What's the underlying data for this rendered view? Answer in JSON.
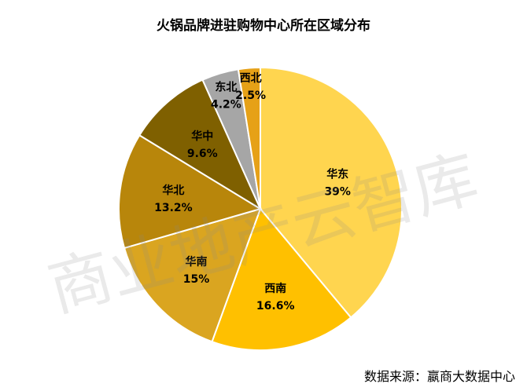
{
  "chart_data": {
    "type": "pie",
    "title": "火锅品牌进驻购物中心所在区域分布",
    "slices": [
      {
        "name": "华东",
        "value": 39,
        "label": "39%",
        "color": "#FFD54F"
      },
      {
        "name": "西南",
        "value": 16.6,
        "label": "16.6%",
        "color": "#FFC000"
      },
      {
        "name": "华南",
        "value": 15,
        "label": "15%",
        "color": "#DAA520"
      },
      {
        "name": "华北",
        "value": 13.2,
        "label": "13.2%",
        "color": "#B8860B"
      },
      {
        "name": "华中",
        "value": 9.6,
        "label": "9.6%",
        "color": "#7F6000"
      },
      {
        "name": "东北",
        "value": 4.2,
        "label": "4.2%",
        "color": "#A6A6A6"
      },
      {
        "name": "西北",
        "value": 2.5,
        "label": "2.5%",
        "color": "#E6A117"
      }
    ]
  },
  "watermark": "商业地产云智库",
  "source": "数据来源：嬴商大数据中心"
}
